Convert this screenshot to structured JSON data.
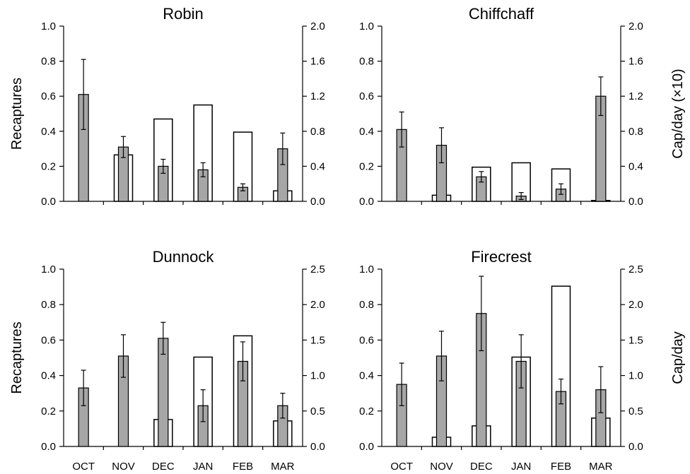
{
  "months": [
    "OCT",
    "NOV",
    "DEC",
    "JAN",
    "FEB",
    "MAR"
  ],
  "left_axis_label": "Recaptures",
  "right_axis_labels": [
    "Cap/day (×10)",
    "Cap/day"
  ],
  "colors": {
    "recaptures_bar": "#a6a6a6",
    "capture_bar": "#ffffff",
    "axis": "#000000"
  },
  "chart_data": [
    {
      "type": "bar",
      "title": "Robin",
      "categories": [
        "OCT",
        "NOV",
        "DEC",
        "JAN",
        "FEB",
        "MAR"
      ],
      "ylim": [
        0,
        1.0
      ],
      "ytick_labels": [
        "0.0",
        "0.2",
        "0.4",
        "0.6",
        "0.8",
        "1.0"
      ],
      "y2lim": [
        0,
        2.0
      ],
      "y2tick_labels": [
        "0.0",
        "0.4",
        "0.8",
        "1.2",
        "1.6",
        "2.0"
      ],
      "series": [
        {
          "role": "recaptures",
          "axis": "left",
          "values": [
            0.61,
            0.31,
            0.2,
            0.18,
            0.08,
            0.3
          ],
          "error": [
            0.2,
            0.06,
            0.04,
            0.04,
            0.02,
            0.09
          ]
        },
        {
          "role": "captures",
          "axis": "right",
          "values": [
            0,
            0.53,
            0.94,
            1.1,
            0.79,
            0.12
          ]
        }
      ]
    },
    {
      "type": "bar",
      "title": "Chiffchaff",
      "categories": [
        "OCT",
        "NOV",
        "DEC",
        "JAN",
        "FEB",
        "MAR"
      ],
      "ylim": [
        0,
        1.0
      ],
      "ytick_labels": [
        "0.0",
        "0.2",
        "0.4",
        "0.6",
        "0.8",
        "1.0"
      ],
      "y2lim": [
        0,
        2.0
      ],
      "y2tick_labels": [
        "0.0",
        "0.4",
        "0.8",
        "1.2",
        "1.6",
        "2.0"
      ],
      "series": [
        {
          "role": "recaptures",
          "axis": "left",
          "values": [
            0.41,
            0.32,
            0.14,
            0.03,
            0.07,
            0.6
          ],
          "error": [
            0.1,
            0.1,
            0.03,
            0.02,
            0.03,
            0.11
          ]
        },
        {
          "role": "captures",
          "axis": "right",
          "values": [
            0,
            0.07,
            0.39,
            0.44,
            0.37,
            0.01
          ]
        }
      ]
    },
    {
      "type": "bar",
      "title": "Dunnock",
      "categories": [
        "OCT",
        "NOV",
        "DEC",
        "JAN",
        "FEB",
        "MAR"
      ],
      "ylim": [
        0,
        1.0
      ],
      "ytick_labels": [
        "0.0",
        "0.2",
        "0.4",
        "0.6",
        "0.8",
        "1.0"
      ],
      "y2lim": [
        0,
        2.5
      ],
      "y2tick_labels": [
        "0.0",
        "0.5",
        "1.0",
        "1.5",
        "2.0",
        "2.5"
      ],
      "series": [
        {
          "role": "recaptures",
          "axis": "left",
          "values": [
            0.33,
            0.51,
            0.61,
            0.23,
            0.48,
            0.23
          ],
          "error": [
            0.1,
            0.12,
            0.09,
            0.09,
            0.11,
            0.07
          ]
        },
        {
          "role": "captures",
          "axis": "right",
          "values": [
            0,
            0,
            0.38,
            1.26,
            1.56,
            0.36
          ]
        }
      ]
    },
    {
      "type": "bar",
      "title": "Firecrest",
      "categories": [
        "OCT",
        "NOV",
        "DEC",
        "JAN",
        "FEB",
        "MAR"
      ],
      "ylim": [
        0,
        1.0
      ],
      "ytick_labels": [
        "0.0",
        "0.2",
        "0.4",
        "0.6",
        "0.8",
        "1.0"
      ],
      "y2lim": [
        0,
        2.5
      ],
      "y2tick_labels": [
        "0.0",
        "0.5",
        "1.0",
        "1.5",
        "2.0",
        "2.5"
      ],
      "series": [
        {
          "role": "recaptures",
          "axis": "left",
          "values": [
            0.35,
            0.51,
            0.75,
            0.48,
            0.31,
            0.32
          ],
          "error": [
            0.12,
            0.14,
            0.21,
            0.15,
            0.07,
            0.13
          ]
        },
        {
          "role": "captures",
          "axis": "right",
          "values": [
            0,
            0.13,
            0.29,
            1.26,
            2.26,
            0.4
          ]
        }
      ]
    }
  ]
}
